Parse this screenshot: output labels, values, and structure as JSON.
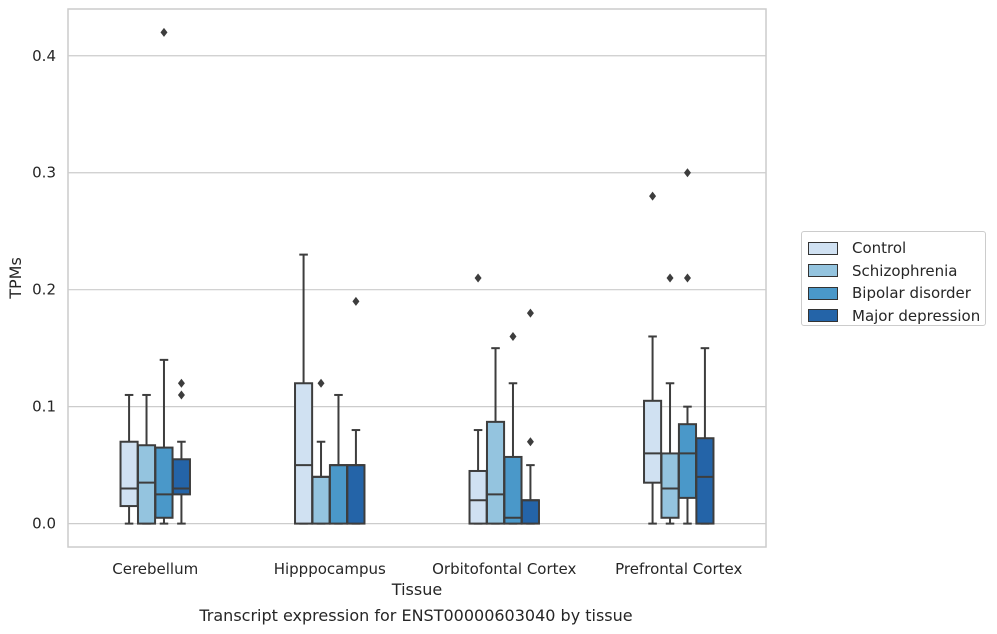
{
  "chart_data": {
    "type": "boxplot",
    "caption": "Transcript expression for ENST00000603040 by tissue",
    "xlabel": "Tissue",
    "ylabel": "TPMs",
    "ylim": [
      -0.02,
      0.44
    ],
    "yticks": [
      0.0,
      0.1,
      0.2,
      0.3,
      0.4
    ],
    "ytick_labels": [
      "0.0",
      "0.1",
      "0.2",
      "0.3",
      "0.4"
    ],
    "grid": "horizontal",
    "legend_position": "right-outside",
    "categories": [
      "Cerebellum",
      "Hipppocampus",
      "Orbitofontal Cortex",
      "Prefrontal Cortex"
    ],
    "series": [
      {
        "name": "Control",
        "color": "#d0e1f2",
        "boxes": [
          {
            "whislo": 0.0,
            "q1": 0.015,
            "med": 0.03,
            "q3": 0.07,
            "whishi": 0.11,
            "fliers": []
          },
          {
            "whislo": 0.0,
            "q1": 0.0,
            "med": 0.05,
            "q3": 0.12,
            "whishi": 0.23,
            "fliers": []
          },
          {
            "whislo": 0.0,
            "q1": 0.0,
            "med": 0.02,
            "q3": 0.045,
            "whishi": 0.08,
            "fliers": [
              0.21
            ]
          },
          {
            "whislo": 0.0,
            "q1": 0.035,
            "med": 0.06,
            "q3": 0.105,
            "whishi": 0.16,
            "fliers": [
              0.28
            ]
          }
        ]
      },
      {
        "name": "Schizophrenia",
        "color": "#94c4df",
        "boxes": [
          {
            "whislo": 0.0,
            "q1": 0.0,
            "med": 0.035,
            "q3": 0.067,
            "whishi": 0.11,
            "fliers": []
          },
          {
            "whislo": 0.0,
            "q1": 0.0,
            "med": 0.04,
            "q3": 0.04,
            "whishi": 0.07,
            "fliers": [
              0.12
            ]
          },
          {
            "whislo": 0.0,
            "q1": 0.0,
            "med": 0.025,
            "q3": 0.087,
            "whishi": 0.15,
            "fliers": []
          },
          {
            "whislo": 0.0,
            "q1": 0.005,
            "med": 0.03,
            "q3": 0.06,
            "whishi": 0.12,
            "fliers": [
              0.21
            ]
          }
        ]
      },
      {
        "name": "Bipolar disorder",
        "color": "#4a98c9",
        "boxes": [
          {
            "whislo": 0.0,
            "q1": 0.005,
            "med": 0.025,
            "q3": 0.065,
            "whishi": 0.14,
            "fliers": [
              0.42
            ]
          },
          {
            "whislo": 0.0,
            "q1": 0.0,
            "med": 0.05,
            "q3": 0.05,
            "whishi": 0.11,
            "fliers": []
          },
          {
            "whislo": 0.0,
            "q1": 0.0,
            "med": 0.005,
            "q3": 0.057,
            "whishi": 0.12,
            "fliers": [
              0.16
            ]
          },
          {
            "whislo": 0.0,
            "q1": 0.022,
            "med": 0.06,
            "q3": 0.085,
            "whishi": 0.1,
            "fliers": [
              0.21,
              0.3
            ]
          }
        ]
      },
      {
        "name": "Major depression",
        "color": "#2464a8",
        "boxes": [
          {
            "whislo": 0.0,
            "q1": 0.025,
            "med": 0.03,
            "q3": 0.055,
            "whishi": 0.07,
            "fliers": [
              0.11,
              0.12
            ]
          },
          {
            "whislo": 0.0,
            "q1": 0.0,
            "med": 0.05,
            "q3": 0.05,
            "whishi": 0.08,
            "fliers": [
              0.19
            ]
          },
          {
            "whislo": 0.0,
            "q1": 0.0,
            "med": 0.02,
            "q3": 0.02,
            "whishi": 0.05,
            "fliers": [
              0.07,
              0.18
            ]
          },
          {
            "whislo": 0.0,
            "q1": 0.0,
            "med": 0.04,
            "q3": 0.073,
            "whishi": 0.15,
            "fliers": []
          }
        ]
      }
    ]
  }
}
